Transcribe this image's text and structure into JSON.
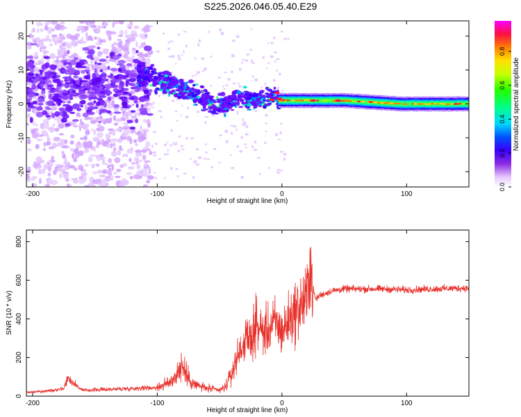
{
  "title": "S225.2026.046.05.40.E29",
  "chart_data": [
    {
      "type": "heatmap",
      "xlabel": "Height of straight line (km)",
      "ylabel": "Frequency (Hz)",
      "xlim": [
        -205,
        150
      ],
      "ylim": [
        -24.5,
        24.5
      ],
      "xticks": [
        -200,
        -100,
        0,
        100
      ],
      "yticks": [
        -20,
        -10,
        0,
        10,
        20
      ],
      "colorbar": {
        "label": "Normalized spectral amplitude",
        "range": [
          0,
          0.98
        ],
        "ticks": [
          "0.0",
          "0.2",
          "0.4",
          "0.6",
          "0.8"
        ],
        "colormap": "rainbow-white-to-magenta"
      },
      "ridge": [
        {
          "x": -110,
          "y": 9
        },
        {
          "x": -95,
          "y": 6
        },
        {
          "x": -80,
          "y": 4
        },
        {
          "x": -65,
          "y": 2
        },
        {
          "x": -50,
          "y": -1
        },
        {
          "x": -40,
          "y": 1
        },
        {
          "x": -30,
          "y": 1.5
        },
        {
          "x": -20,
          "y": 1
        },
        {
          "x": -8,
          "y": 2
        },
        {
          "x": -5,
          "y": 3
        },
        {
          "x": -3,
          "y": 1
        },
        {
          "x": 0,
          "y": 1
        },
        {
          "x": 50,
          "y": 1
        },
        {
          "x": 95,
          "y": 0
        },
        {
          "x": 150,
          "y": 0
        }
      ]
    },
    {
      "type": "line",
      "xlabel": "Height of straight line (km)",
      "ylabel": "SNR (10 * v/v)",
      "xlim": [
        -205,
        150
      ],
      "ylim": [
        0,
        860
      ],
      "xticks": [
        -200,
        -100,
        0,
        100
      ],
      "yticks": [
        0,
        200,
        400,
        600,
        800
      ],
      "color": "#e8302a",
      "series": [
        {
          "x": [
            -205,
            -190,
            -175,
            -172,
            -160,
            -140,
            -120,
            -100,
            -90,
            -85,
            -80,
            -75,
            -70,
            -60,
            -50,
            -45,
            -40,
            -35,
            -30,
            -25,
            -20,
            -15,
            -10,
            -5,
            0,
            5,
            10,
            15,
            20,
            22,
            25,
            27,
            30,
            40,
            50,
            60,
            80,
            100,
            120,
            150
          ],
          "y": [
            20,
            25,
            40,
            95,
            30,
            35,
            40,
            45,
            70,
            110,
            160,
            90,
            60,
            40,
            30,
            50,
            120,
            220,
            280,
            300,
            370,
            330,
            350,
            380,
            330,
            390,
            430,
            470,
            500,
            700,
            560,
            500,
            520,
            545,
            555,
            555,
            555,
            550,
            555,
            560
          ]
        }
      ]
    }
  ]
}
